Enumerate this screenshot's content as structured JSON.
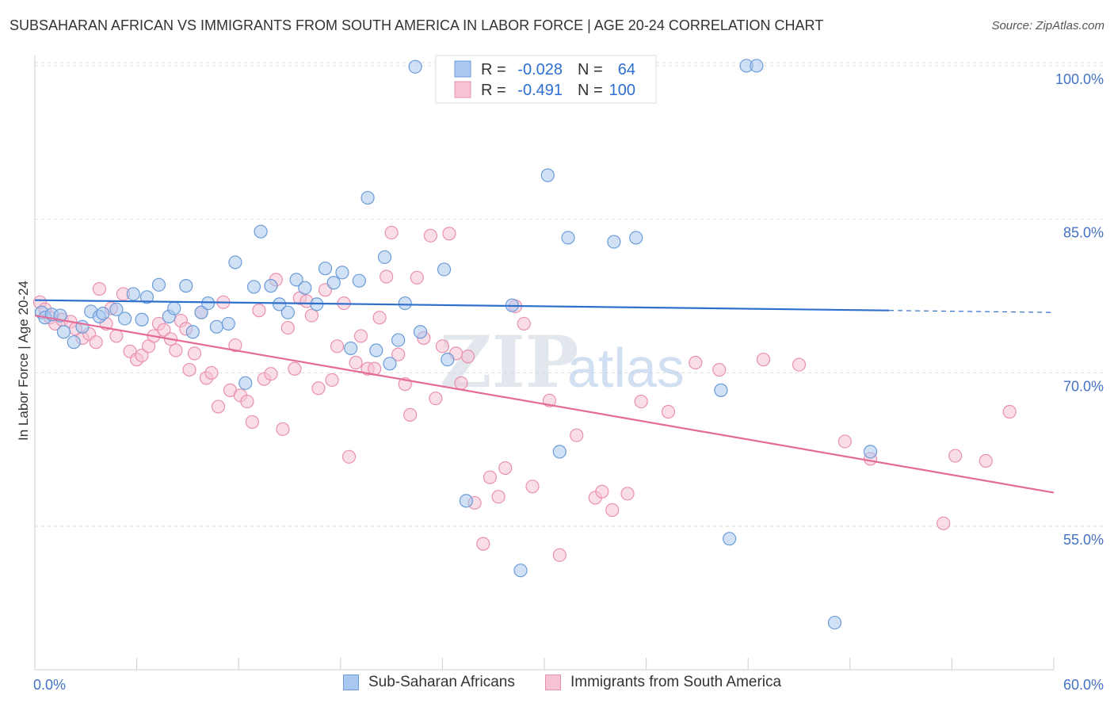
{
  "title": "SUBSAHARAN AFRICAN VS IMMIGRANTS FROM SOUTH AMERICA IN LABOR FORCE | AGE 20-24 CORRELATION CHART",
  "source": "Source: ZipAtlas.com",
  "watermark": {
    "zip": "ZIP",
    "atlas": "atlas"
  },
  "colors": {
    "blue_fill": "#aac8ef",
    "blue_stroke": "#6b9bd8",
    "blue_line": "#2f6fcc",
    "pink_fill": "#f6c3d4",
    "pink_stroke": "#ea8fae",
    "pink_line": "#e46a97",
    "grid": "#dddddd",
    "tick_text": "#4472c4"
  },
  "legend": {
    "rows": [
      {
        "r_label": "R =",
        "r_value": "-0.028",
        "n_label": "N =",
        "n_value": "64"
      },
      {
        "r_label": "R =",
        "r_value": "-0.491",
        "n_label": "N =",
        "n_value": "100"
      }
    ]
  },
  "chart_data": {
    "type": "scatter",
    "xlabel": "",
    "ylabel": "In Labor Force | Age 20-24",
    "xlim": [
      0,
      60
    ],
    "ylim": [
      41,
      101
    ],
    "x_tick_labels": [
      "0.0%",
      "60.0%"
    ],
    "y_ticks": [
      55,
      70,
      85,
      100
    ],
    "y_tick_labels": [
      "55.0%",
      "70.0%",
      "85.0%",
      "100.0%"
    ],
    "grid": true,
    "legend_position": "top-center",
    "series": [
      {
        "name": "Sub-Saharan Africans",
        "color": "#6b9bd8",
        "trend": {
          "x0": 0,
          "y0": 77.1,
          "x1": 60,
          "y1": 75.9,
          "solid_until_x": 50.3
        },
        "points": [
          [
            0.4,
            75.9
          ],
          [
            0.6,
            75.4
          ],
          [
            1.0,
            75.7
          ],
          [
            1.5,
            75.6
          ],
          [
            1.7,
            74.0
          ],
          [
            2.3,
            73.0
          ],
          [
            2.8,
            74.5
          ],
          [
            3.3,
            76.0
          ],
          [
            3.8,
            75.5
          ],
          [
            4.0,
            75.8
          ],
          [
            4.8,
            76.2
          ],
          [
            5.3,
            75.3
          ],
          [
            5.8,
            77.7
          ],
          [
            6.3,
            75.2
          ],
          [
            6.6,
            77.4
          ],
          [
            7.3,
            78.6
          ],
          [
            7.9,
            75.5
          ],
          [
            8.2,
            76.3
          ],
          [
            8.9,
            78.5
          ],
          [
            9.3,
            74.0
          ],
          [
            9.8,
            75.9
          ],
          [
            10.2,
            76.8
          ],
          [
            10.7,
            74.5
          ],
          [
            11.4,
            74.8
          ],
          [
            11.8,
            80.8
          ],
          [
            12.4,
            69.0
          ],
          [
            12.9,
            78.4
          ],
          [
            13.3,
            83.8
          ],
          [
            13.9,
            78.5
          ],
          [
            14.4,
            76.7
          ],
          [
            14.9,
            75.9
          ],
          [
            15.4,
            79.1
          ],
          [
            15.9,
            78.3
          ],
          [
            16.6,
            76.7
          ],
          [
            17.1,
            80.2
          ],
          [
            17.6,
            78.8
          ],
          [
            18.1,
            79.8
          ],
          [
            18.6,
            72.4
          ],
          [
            19.1,
            79.0
          ],
          [
            19.6,
            87.1
          ],
          [
            20.1,
            72.2
          ],
          [
            20.6,
            81.3
          ],
          [
            20.9,
            70.9
          ],
          [
            21.4,
            73.2
          ],
          [
            21.8,
            76.8
          ],
          [
            22.4,
            99.9
          ],
          [
            22.7,
            74.0
          ],
          [
            24.1,
            80.1
          ],
          [
            24.3,
            71.3
          ],
          [
            25.4,
            57.5
          ],
          [
            27.1,
            100.0
          ],
          [
            28.1,
            76.6
          ],
          [
            28.6,
            50.7
          ],
          [
            30.2,
            89.3
          ],
          [
            30.9,
            62.3
          ],
          [
            31.4,
            83.2
          ],
          [
            34.1,
            82.8
          ],
          [
            35.4,
            83.2
          ],
          [
            40.4,
            68.3
          ],
          [
            40.9,
            53.8
          ],
          [
            41.9,
            100.0
          ],
          [
            42.5,
            100.0
          ],
          [
            47.1,
            45.6
          ],
          [
            49.2,
            62.3
          ]
        ]
      },
      {
        "name": "Immigrants from South America",
        "color": "#ea8fae",
        "trend": {
          "x0": 0,
          "y0": 75.6,
          "x1": 60,
          "y1": 58.3
        },
        "points": [
          [
            0.3,
            76.9
          ],
          [
            0.6,
            76.2
          ],
          [
            0.9,
            75.4
          ],
          [
            1.2,
            74.8
          ],
          [
            1.6,
            75.2
          ],
          [
            2.1,
            75.0
          ],
          [
            2.4,
            74.3
          ],
          [
            2.8,
            73.4
          ],
          [
            3.2,
            73.8
          ],
          [
            3.6,
            73.0
          ],
          [
            3.8,
            78.2
          ],
          [
            4.2,
            74.8
          ],
          [
            4.5,
            76.3
          ],
          [
            4.8,
            73.6
          ],
          [
            5.2,
            77.7
          ],
          [
            5.6,
            72.1
          ],
          [
            6.0,
            71.3
          ],
          [
            6.3,
            71.7
          ],
          [
            6.7,
            72.6
          ],
          [
            7.0,
            73.6
          ],
          [
            7.3,
            74.8
          ],
          [
            7.6,
            74.2
          ],
          [
            8.0,
            73.3
          ],
          [
            8.3,
            72.2
          ],
          [
            8.6,
            75.1
          ],
          [
            8.9,
            74.3
          ],
          [
            9.1,
            70.3
          ],
          [
            9.4,
            71.9
          ],
          [
            9.8,
            75.9
          ],
          [
            10.1,
            69.5
          ],
          [
            10.4,
            70.0
          ],
          [
            10.8,
            66.7
          ],
          [
            11.1,
            76.9
          ],
          [
            11.5,
            68.3
          ],
          [
            11.8,
            72.7
          ],
          [
            12.1,
            67.8
          ],
          [
            12.5,
            67.2
          ],
          [
            12.8,
            65.2
          ],
          [
            13.2,
            76.1
          ],
          [
            13.5,
            69.4
          ],
          [
            13.9,
            69.9
          ],
          [
            14.2,
            79.1
          ],
          [
            14.6,
            64.5
          ],
          [
            14.9,
            74.4
          ],
          [
            15.3,
            70.4
          ],
          [
            15.6,
            77.3
          ],
          [
            16.0,
            77.0
          ],
          [
            16.3,
            75.6
          ],
          [
            16.7,
            68.5
          ],
          [
            17.1,
            78.1
          ],
          [
            17.5,
            69.3
          ],
          [
            17.8,
            72.6
          ],
          [
            18.2,
            76.8
          ],
          [
            18.5,
            61.8
          ],
          [
            18.9,
            71.0
          ],
          [
            19.2,
            73.6
          ],
          [
            19.6,
            70.4
          ],
          [
            20.0,
            70.4
          ],
          [
            20.3,
            75.4
          ],
          [
            20.7,
            79.4
          ],
          [
            21.0,
            83.7
          ],
          [
            21.4,
            71.8
          ],
          [
            21.8,
            68.9
          ],
          [
            22.1,
            65.9
          ],
          [
            22.5,
            79.3
          ],
          [
            22.9,
            73.4
          ],
          [
            23.3,
            83.4
          ],
          [
            23.6,
            67.5
          ],
          [
            24.0,
            72.6
          ],
          [
            24.4,
            83.6
          ],
          [
            24.8,
            71.9
          ],
          [
            25.1,
            69.0
          ],
          [
            25.5,
            71.6
          ],
          [
            25.9,
            57.3
          ],
          [
            26.4,
            53.3
          ],
          [
            26.8,
            59.8
          ],
          [
            27.3,
            57.9
          ],
          [
            27.7,
            60.7
          ],
          [
            28.3,
            76.5
          ],
          [
            28.8,
            74.8
          ],
          [
            29.3,
            58.9
          ],
          [
            30.3,
            67.3
          ],
          [
            30.9,
            52.2
          ],
          [
            31.9,
            63.9
          ],
          [
            33.0,
            57.8
          ],
          [
            33.4,
            58.4
          ],
          [
            34.0,
            56.6
          ],
          [
            34.9,
            58.2
          ],
          [
            35.7,
            67.2
          ],
          [
            37.3,
            66.2
          ],
          [
            38.9,
            71.0
          ],
          [
            40.3,
            70.3
          ],
          [
            42.9,
            71.3
          ],
          [
            45.0,
            70.8
          ],
          [
            47.7,
            63.3
          ],
          [
            49.2,
            61.6
          ],
          [
            53.5,
            55.3
          ],
          [
            54.2,
            61.9
          ],
          [
            56.0,
            61.4
          ],
          [
            57.4,
            66.2
          ]
        ]
      }
    ]
  }
}
